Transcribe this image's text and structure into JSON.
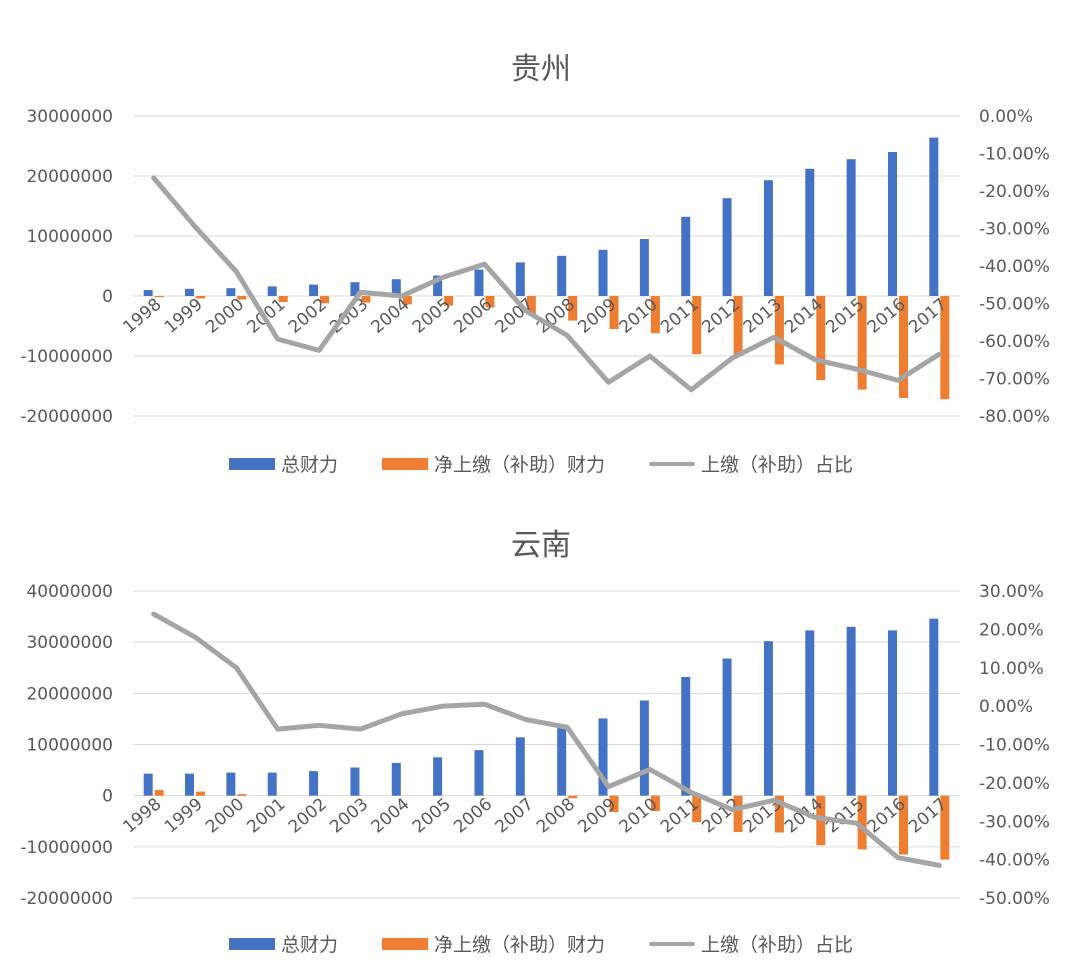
{
  "colors": {
    "total": "#4472C4",
    "net": "#ED7D31",
    "ratio": "#A5A5A5",
    "grid": "#D9D9D9",
    "text": "#595959"
  },
  "legend": {
    "total": "总财力",
    "net": "净上缴（补助）财力",
    "ratio": "上缴（补助）占比"
  },
  "chart_data": [
    {
      "type": "bar",
      "title": "贵州",
      "categories": [
        "1998",
        "1999",
        "2000",
        "2001",
        "2002",
        "2003",
        "2004",
        "2005",
        "2006",
        "2007",
        "2008",
        "2009",
        "2010",
        "2011",
        "2012",
        "2013",
        "2014",
        "2015",
        "2016",
        "2017"
      ],
      "ylim": [
        -20000000,
        30000000
      ],
      "yticks": [
        30000000,
        20000000,
        10000000,
        0,
        -10000000,
        -20000000
      ],
      "y2lim": [
        -0.8,
        0
      ],
      "y2ticks": [
        "0.00%",
        "-10.00%",
        "-20.00%",
        "-30.00%",
        "-40.00%",
        "-50.00%",
        "-60.00%",
        "-70.00%",
        "-80.00%"
      ],
      "series": [
        {
          "name": "总财力",
          "type": "bar",
          "values": [
            1000000,
            1200000,
            1300000,
            1600000,
            1900000,
            2300000,
            2800000,
            3400000,
            4400000,
            5600000,
            6700000,
            7700000,
            9500000,
            13200000,
            16300000,
            19300000,
            21200000,
            22800000,
            24000000,
            26400000
          ]
        },
        {
          "name": "净上缴（补助）财力",
          "type": "bar",
          "values": [
            -200000,
            -400000,
            -600000,
            -1000000,
            -1200000,
            -1100000,
            -1400000,
            -1600000,
            -1900000,
            -3000000,
            -4100000,
            -5500000,
            -6200000,
            -9700000,
            -10000000,
            -11400000,
            -14000000,
            -15600000,
            -17000000,
            -17200000
          ]
        },
        {
          "name": "上缴（补助）占比",
          "type": "line",
          "axis": "right",
          "values": [
            -0.165,
            -0.295,
            -0.415,
            -0.595,
            -0.625,
            -0.47,
            -0.48,
            -0.43,
            -0.395,
            -0.52,
            -0.585,
            -0.71,
            -0.64,
            -0.73,
            -0.645,
            -0.59,
            -0.65,
            -0.675,
            -0.705,
            -0.635
          ]
        }
      ]
    },
    {
      "type": "bar",
      "title": "云南",
      "categories": [
        "1998",
        "1999",
        "2000",
        "2001",
        "2002",
        "2003",
        "2004",
        "2005",
        "2006",
        "2007",
        "2008",
        "2009",
        "2010",
        "2011",
        "2012",
        "2013",
        "2014",
        "2015",
        "2016",
        "2017"
      ],
      "ylim": [
        -20000000,
        40000000
      ],
      "yticks": [
        40000000,
        30000000,
        20000000,
        10000000,
        0,
        -10000000,
        -20000000
      ],
      "y2lim": [
        -0.5,
        0.3
      ],
      "y2ticks": [
        "30.00%",
        "20.00%",
        "10.00%",
        "0.00%",
        "-10.00%",
        "-20.00%",
        "-30.00%",
        "-40.00%",
        "-50.00%"
      ],
      "series": [
        {
          "name": "总财力",
          "type": "bar",
          "values": [
            4300000,
            4300000,
            4500000,
            4500000,
            4800000,
            5500000,
            6400000,
            7500000,
            8900000,
            11400000,
            13500000,
            15100000,
            18600000,
            23200000,
            26800000,
            30200000,
            32300000,
            33000000,
            32300000,
            34600000
          ]
        },
        {
          "name": "净上缴（补助）财力",
          "type": "bar",
          "values": [
            1100000,
            800000,
            300000,
            0,
            0,
            0,
            0,
            0,
            0,
            0,
            -500000,
            -3200000,
            -3000000,
            -5200000,
            -7100000,
            -7200000,
            -9700000,
            -10500000,
            -11500000,
            -12500000
          ]
        },
        {
          "name": "上缴（补助）占比",
          "type": "line",
          "axis": "right",
          "values": [
            0.24,
            0.18,
            0.1,
            -0.06,
            -0.05,
            -0.06,
            -0.02,
            0.0,
            0.005,
            -0.035,
            -0.055,
            -0.21,
            -0.165,
            -0.225,
            -0.27,
            -0.245,
            -0.29,
            -0.305,
            -0.395,
            -0.415
          ]
        }
      ]
    }
  ]
}
